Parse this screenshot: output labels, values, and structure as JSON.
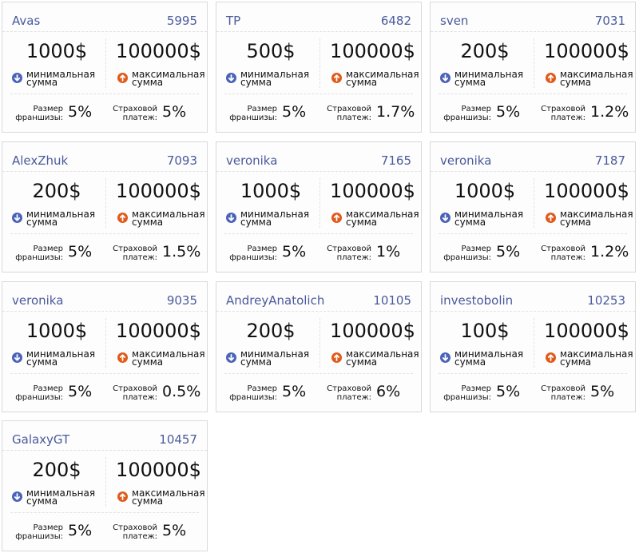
{
  "labels": {
    "min_l1": "минимальная",
    "min_l2": "сумма",
    "max_l1": "максимальная",
    "max_l2": "сумма",
    "fr_l1": "Размер",
    "fr_l2": "франшизы:",
    "ins_l1": "Страховой",
    "ins_l2": "платеж:"
  },
  "icons": {
    "min": "arrow-down-circle-icon",
    "max": "arrow-up-circle-icon"
  },
  "colors": {
    "link": "#4a5a9c",
    "min_icon": "#4a62b8",
    "max_icon": "#e05a1a"
  },
  "cards": [
    {
      "name": "Avas",
      "id": "5995",
      "min": "1000$",
      "max": "100000$",
      "franchise": "5%",
      "insurance": "5%"
    },
    {
      "name": "TP",
      "id": "6482",
      "min": "500$",
      "max": "100000$",
      "franchise": "5%",
      "insurance": "1.7%"
    },
    {
      "name": "sven",
      "id": "7031",
      "min": "200$",
      "max": "100000$",
      "franchise": "5%",
      "insurance": "1.2%"
    },
    {
      "name": "AlexZhuk",
      "id": "7093",
      "min": "200$",
      "max": "100000$",
      "franchise": "5%",
      "insurance": "1.5%"
    },
    {
      "name": "veronika",
      "id": "7165",
      "min": "1000$",
      "max": "100000$",
      "franchise": "5%",
      "insurance": "1%"
    },
    {
      "name": "veronika",
      "id": "7187",
      "min": "1000$",
      "max": "100000$",
      "franchise": "5%",
      "insurance": "1.2%"
    },
    {
      "name": "veronika",
      "id": "9035",
      "min": "1000$",
      "max": "100000$",
      "franchise": "5%",
      "insurance": "0.5%"
    },
    {
      "name": "AndreyAnatolich",
      "id": "10105",
      "min": "200$",
      "max": "100000$",
      "franchise": "5%",
      "insurance": "6%"
    },
    {
      "name": "investobolin",
      "id": "10253",
      "min": "100$",
      "max": "100000$",
      "franchise": "5%",
      "insurance": "5%"
    },
    {
      "name": "GalaxyGT",
      "id": "10457",
      "min": "200$",
      "max": "100000$",
      "franchise": "5%",
      "insurance": "5%"
    }
  ]
}
